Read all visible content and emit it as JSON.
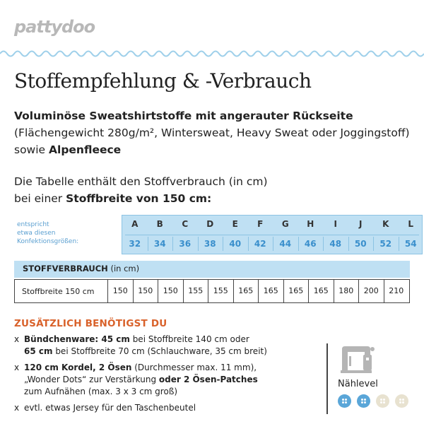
{
  "brand": {
    "logo_text": "pattydoo"
  },
  "title": "Stoffempfehlung & -Verbrauch",
  "intro": {
    "bold1": "Voluminöse Sweatshirtstoffe mit angerauter Rückseite",
    "normal1": "(Flächengewicht 280g/m², Wintersweat, Heavy Sweat oder Joggingstoff) sowie ",
    "bold2": "Alpenfleece"
  },
  "table_info": {
    "line1": "Die Tabelle enthält den Stoffverbrauch (in cm)",
    "line2_normal": "bei einer ",
    "line2_bold": "Stoffbreite von 150 cm:"
  },
  "sizes": {
    "label_lines": [
      "entspricht",
      "etwa diesen",
      "Konfektionsgrößen:"
    ],
    "letters": [
      "A",
      "B",
      "C",
      "D",
      "E",
      "F",
      "G",
      "H",
      "I",
      "J",
      "K",
      "L"
    ],
    "numbers": [
      "32",
      "34",
      "36",
      "38",
      "40",
      "42",
      "44",
      "46",
      "48",
      "50",
      "52",
      "54"
    ]
  },
  "usage": {
    "header_bold": "STOFFVERBRAUCH",
    "header_unit": " (in cm)",
    "row_label": "Stoffbreite 150 cm",
    "values": [
      "150",
      "150",
      "150",
      "155",
      "155",
      "165",
      "165",
      "165",
      "165",
      "180",
      "200",
      "210"
    ]
  },
  "extras": {
    "title": "ZUSÄTZLICH BENÖTIGST DU",
    "bullet": "x",
    "item1_b1": "Bündchenware: 45 cm",
    "item1_n1": " bei Stoffbreite 140 cm oder",
    "item1_b2": "65 cm",
    "item1_n2": " bei Stoffbreite 70 cm (Schlauchware, 35 cm breit)",
    "item2_b1": "120 cm Kordel, 2 Ösen",
    "item2_n1": " (Durchmesser max. 11 mm),",
    "item2_n2": "„Wonder Dots“ zur Verstärkung ",
    "item2_b2": "oder 2 Ösen-Patches",
    "item2_n3": "zum Aufnähen (max. 3 x 3 cm groß)",
    "item3": "evtl. etwas Jersey für den Taschenbeutel"
  },
  "sewing_level": {
    "label": "Nählevel",
    "icon": "sewing-machine-icon",
    "level": 2,
    "max": 4,
    "active_color": "#5aa6d8",
    "inactive_color": "#e8e2d0"
  },
  "colors": {
    "accent_blue": "#bfe0f3",
    "accent_orange": "#d9622b",
    "wave_blue": "#9fd0ea"
  }
}
